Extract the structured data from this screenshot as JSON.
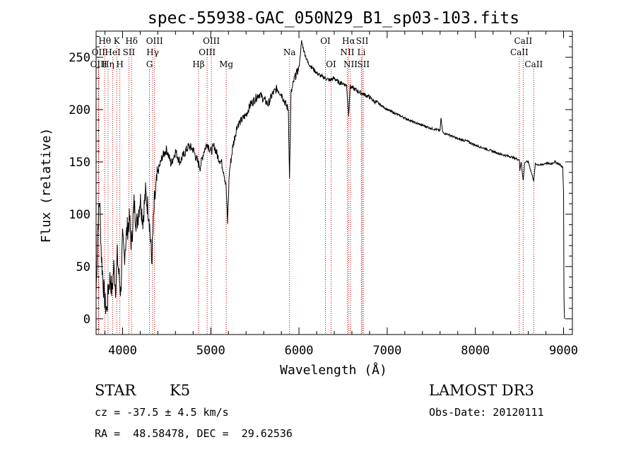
{
  "chart_data": {
    "type": "line",
    "title": "spec-55938-GAC_050N29_B1_sp03-103.fits",
    "xlabel": "Wavelength (Å)",
    "ylabel": "Flux (relative)",
    "xlim": [
      3700,
      9100
    ],
    "ylim": [
      -15,
      275
    ],
    "x_ticks": [
      4000,
      5000,
      6000,
      7000,
      8000,
      9000
    ],
    "x_tick_labels": [
      "4000",
      "5000",
      "6000",
      "7000",
      "8000",
      "9000"
    ],
    "y_ticks": [
      0,
      50,
      100,
      150,
      200,
      250
    ],
    "y_tick_labels": [
      "0",
      "50",
      "100",
      "150",
      "200",
      "250"
    ],
    "series": [
      {
        "name": "flux",
        "points": [
          [
            3700,
            25
          ],
          [
            3720,
            90
          ],
          [
            3740,
            115
          ],
          [
            3760,
            60
          ],
          [
            3780,
            35
          ],
          [
            3800,
            15
          ],
          [
            3820,
            8
          ],
          [
            3840,
            30
          ],
          [
            3860,
            40
          ],
          [
            3880,
            25
          ],
          [
            3900,
            50
          ],
          [
            3920,
            30
          ],
          [
            3940,
            60
          ],
          [
            3960,
            40
          ],
          [
            3980,
            25
          ],
          [
            4000,
            75
          ],
          [
            4020,
            60
          ],
          [
            4050,
            85
          ],
          [
            4080,
            95
          ],
          [
            4100,
            70
          ],
          [
            4130,
            110
          ],
          [
            4160,
            90
          ],
          [
            4200,
            115
          ],
          [
            4230,
            95
          ],
          [
            4260,
            120
          ],
          [
            4300,
            100
          ],
          [
            4330,
            55
          ],
          [
            4360,
            110
          ],
          [
            4400,
            140
          ],
          [
            4450,
            155
          ],
          [
            4500,
            162
          ],
          [
            4550,
            148
          ],
          [
            4600,
            160
          ],
          [
            4650,
            150
          ],
          [
            4700,
            158
          ],
          [
            4750,
            165
          ],
          [
            4800,
            162
          ],
          [
            4850,
            150
          ],
          [
            4880,
            145
          ],
          [
            4920,
            160
          ],
          [
            4960,
            168
          ],
          [
            5000,
            160
          ],
          [
            5040,
            165
          ],
          [
            5080,
            155
          ],
          [
            5120,
            150
          ],
          [
            5150,
            140
          ],
          [
            5175,
            125
          ],
          [
            5190,
            92
          ],
          [
            5210,
            140
          ],
          [
            5250,
            165
          ],
          [
            5300,
            185
          ],
          [
            5350,
            190
          ],
          [
            5400,
            195
          ],
          [
            5450,
            205
          ],
          [
            5500,
            210
          ],
          [
            5550,
            215
          ],
          [
            5600,
            210
          ],
          [
            5650,
            205
          ],
          [
            5700,
            215
          ],
          [
            5750,
            220
          ],
          [
            5800,
            215
          ],
          [
            5850,
            205
          ],
          [
            5880,
            200
          ],
          [
            5893,
            133
          ],
          [
            5910,
            215
          ],
          [
            5950,
            230
          ],
          [
            6000,
            240
          ],
          [
            6030,
            265
          ],
          [
            6060,
            255
          ],
          [
            6100,
            245
          ],
          [
            6150,
            240
          ],
          [
            6200,
            235
          ],
          [
            6250,
            232
          ],
          [
            6300,
            230
          ],
          [
            6350,
            228
          ],
          [
            6400,
            230
          ],
          [
            6450,
            226
          ],
          [
            6500,
            225
          ],
          [
            6540,
            223
          ],
          [
            6563,
            195
          ],
          [
            6580,
            222
          ],
          [
            6620,
            220
          ],
          [
            6660,
            218
          ],
          [
            6700,
            216
          ],
          [
            6750,
            214
          ],
          [
            6800,
            212
          ],
          [
            6850,
            208
          ],
          [
            6900,
            206
          ],
          [
            6950,
            203
          ],
          [
            7000,
            200
          ],
          [
            7100,
            196
          ],
          [
            7200,
            192
          ],
          [
            7300,
            188
          ],
          [
            7400,
            185
          ],
          [
            7500,
            182
          ],
          [
            7600,
            180
          ],
          [
            7610,
            192
          ],
          [
            7630,
            178
          ],
          [
            7700,
            176
          ],
          [
            7800,
            172
          ],
          [
            7900,
            170
          ],
          [
            8000,
            166
          ],
          [
            8100,
            163
          ],
          [
            8200,
            160
          ],
          [
            8300,
            157
          ],
          [
            8400,
            155
          ],
          [
            8498,
            152
          ],
          [
            8505,
            142
          ],
          [
            8520,
            150
          ],
          [
            8542,
            132
          ],
          [
            8560,
            150
          ],
          [
            8600,
            150
          ],
          [
            8662,
            132
          ],
          [
            8680,
            148
          ],
          [
            8750,
            147
          ],
          [
            8800,
            149
          ],
          [
            8850,
            148
          ],
          [
            8900,
            150
          ],
          [
            8950,
            148
          ],
          [
            8990,
            145
          ],
          [
            9000,
            120
          ],
          [
            9005,
            20
          ],
          [
            9010,
            0
          ]
        ]
      }
    ],
    "line_markers": [
      {
        "label": "Hθ",
        "x": 3798,
        "row": 1
      },
      {
        "label": "OII",
        "x": 3727,
        "row": 2
      },
      {
        "label": "OIII",
        "x": 3729,
        "row": 3
      },
      {
        "label": "Hη",
        "x": 3835,
        "row": 3
      },
      {
        "label": "K",
        "x": 3934,
        "row": 1
      },
      {
        "label": "HeI",
        "x": 3889,
        "row": 2
      },
      {
        "label": "H",
        "x": 3969,
        "row": 3
      },
      {
        "label": "Hδ",
        "x": 4102,
        "row": 1
      },
      {
        "label": "SII",
        "x": 4072,
        "row": 2
      },
      {
        "label": "OIII",
        "x": 4363,
        "row": 1
      },
      {
        "label": "Hγ",
        "x": 4341,
        "row": 2
      },
      {
        "label": "G",
        "x": 4305,
        "row": 3
      },
      {
        "label": "OIII",
        "x": 5007,
        "row": 1
      },
      {
        "label": "OIII",
        "x": 4959,
        "row": 2
      },
      {
        "label": "Hβ",
        "x": 4861,
        "row": 3
      },
      {
        "label": "Mg",
        "x": 5175,
        "row": 3
      },
      {
        "label": "Na",
        "x": 5893,
        "row": 2
      },
      {
        "label": "OI",
        "x": 6300,
        "row": 1
      },
      {
        "label": "OI",
        "x": 6364,
        "row": 3
      },
      {
        "label": "Hα",
        "x": 6563,
        "row": 1
      },
      {
        "label": "SII",
        "x": 6717,
        "row": 1
      },
      {
        "label": "NII",
        "x": 6548,
        "row": 2
      },
      {
        "label": "Li",
        "x": 6708,
        "row": 2
      },
      {
        "label": "NII",
        "x": 6584,
        "row": 3
      },
      {
        "label": "SII",
        "x": 6731,
        "row": 3
      },
      {
        "label": "CaII",
        "x": 8542,
        "row": 1
      },
      {
        "label": "CaII",
        "x": 8498,
        "row": 2
      },
      {
        "label": "CaII",
        "x": 8662,
        "row": 3
      }
    ]
  },
  "footer": {
    "object_class": "STAR",
    "subclass": "K5",
    "survey": "LAMOST DR3",
    "velocity": "cz = -37.5 ± 4.5 km/s",
    "obs_date": "Obs-Date: 20120111",
    "coords": "RA =  48.58478, DEC =  29.62536"
  },
  "colors": {
    "line": "#000000",
    "marker": "#cc0000",
    "axes": "#000000"
  }
}
